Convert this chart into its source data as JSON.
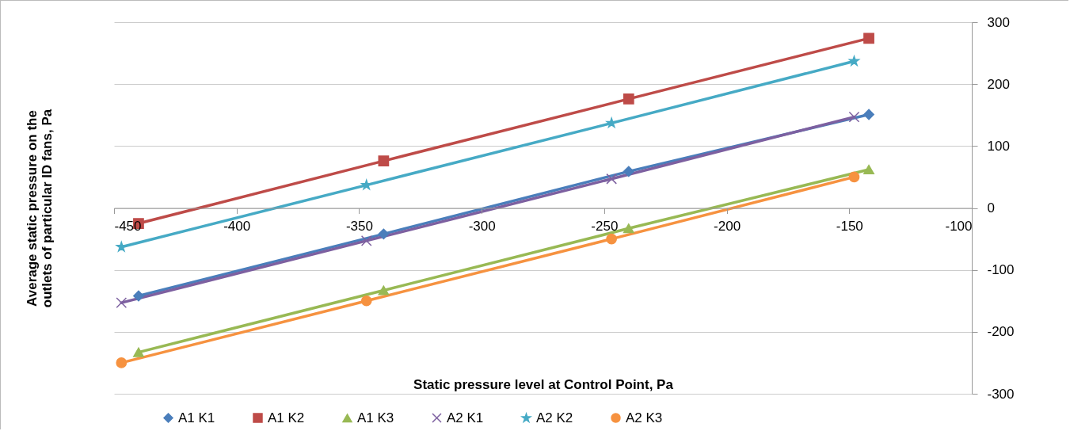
{
  "chart_data": {
    "type": "line",
    "xlabel": "Static pressure level at Control Point, Pa",
    "ylabel": "Average static pressure on the outlets of particular ID fans, Pa",
    "xlim": [
      -450,
      -100
    ],
    "xticks": [
      -450,
      -400,
      -350,
      -300,
      -250,
      -200,
      -150,
      -100
    ],
    "ylim": [
      -300,
      300
    ],
    "yticks": [
      -300,
      -200,
      -100,
      0,
      100,
      200,
      300
    ],
    "grid": "y",
    "legend": "bottom",
    "series": [
      {
        "name": "A1 K1",
        "color": "#4a7ebb",
        "marker": "diamond",
        "x": [
          -440,
          -340,
          -240,
          -142
        ],
        "values": [
          -142,
          -42,
          59,
          151
        ]
      },
      {
        "name": "A1 K2",
        "color": "#be4b48",
        "marker": "square",
        "x": [
          -440,
          -340,
          -240,
          -142
        ],
        "values": [
          -25,
          76,
          176,
          274
        ]
      },
      {
        "name": "A1 K3",
        "color": "#98b954",
        "marker": "triangle",
        "x": [
          -440,
          -340,
          -240,
          -142
        ],
        "values": [
          -233,
          -133,
          -33,
          62
        ]
      },
      {
        "name": "A2 K1",
        "color": "#7d60a0",
        "marker": "cross",
        "x": [
          -447,
          -347,
          -247,
          -148
        ],
        "values": [
          -153,
          -53,
          47,
          147
        ]
      },
      {
        "name": "A2 K2",
        "color": "#46aac5",
        "marker": "star",
        "x": [
          -447,
          -347,
          -247,
          -148
        ],
        "values": [
          -63,
          37,
          137,
          237
        ]
      },
      {
        "name": "A2 K3",
        "color": "#f69240",
        "marker": "circle",
        "x": [
          -447,
          -347,
          -247,
          -148
        ],
        "values": [
          -250,
          -150,
          -50,
          50
        ]
      }
    ]
  }
}
